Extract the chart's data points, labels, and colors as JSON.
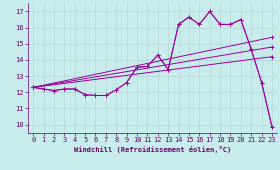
{
  "bg_color": "#c8ecec",
  "line_color": "#990099",
  "xlim": [
    -0.5,
    23.5
  ],
  "ylim": [
    9.5,
    17.5
  ],
  "xticks": [
    0,
    1,
    2,
    3,
    4,
    5,
    6,
    7,
    8,
    9,
    10,
    11,
    12,
    13,
    14,
    15,
    16,
    17,
    18,
    19,
    20,
    21,
    22,
    23
  ],
  "yticks": [
    10,
    11,
    12,
    13,
    14,
    15,
    16,
    17
  ],
  "xlabel": "Windchill (Refroidissement éolien,°C)",
  "curve1_x": [
    0,
    1,
    2,
    3,
    4,
    5,
    6,
    7,
    8,
    9,
    10,
    11,
    12,
    13,
    14,
    15,
    16,
    17,
    18,
    19,
    20,
    21,
    22,
    23
  ],
  "curve1_y": [
    12.3,
    12.2,
    12.1,
    12.2,
    12.2,
    11.85,
    11.8,
    11.8,
    12.15,
    12.6,
    13.55,
    13.6,
    14.3,
    13.4,
    16.2,
    16.65,
    16.2,
    17.0,
    16.2,
    16.2,
    16.5,
    14.65,
    12.6,
    9.85
  ],
  "curve2_x": [
    0,
    1,
    2,
    3,
    4,
    5,
    6,
    7,
    8,
    9,
    10,
    11,
    12,
    13,
    14,
    15,
    16,
    17,
    18,
    19,
    20,
    21,
    22,
    23
  ],
  "curve2_y": [
    12.3,
    12.2,
    12.1,
    12.2,
    12.2,
    11.85,
    11.8,
    11.8,
    12.15,
    12.6,
    13.55,
    13.6,
    14.3,
    13.4,
    16.2,
    16.65,
    16.2,
    17.0,
    16.2,
    16.2,
    16.5,
    14.65,
    12.6,
    9.85
  ],
  "line1_x": [
    0,
    23
  ],
  "line1_y": [
    12.3,
    15.4
  ],
  "line2_x": [
    0,
    23
  ],
  "line2_y": [
    12.3,
    14.8
  ],
  "line3_x": [
    0,
    23
  ],
  "line3_y": [
    12.3,
    14.2
  ],
  "grid_color": "#b0d0d0",
  "tick_color": "#660066",
  "tick_fontsize": 5,
  "xlabel_fontsize": 5
}
